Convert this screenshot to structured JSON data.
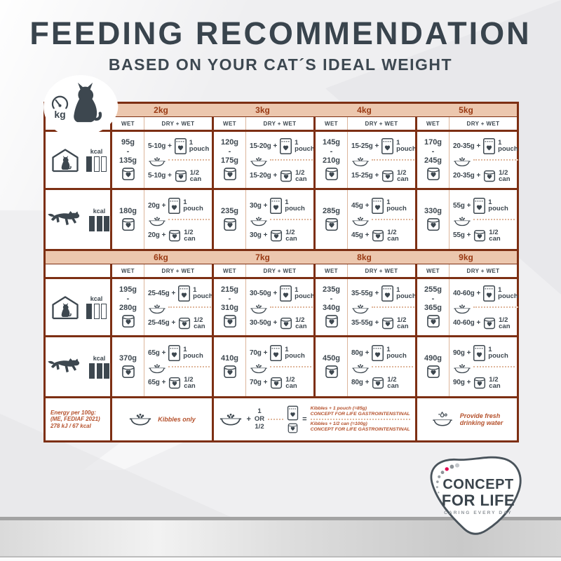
{
  "title": "FEEDING RECOMMENDATION",
  "subtitle": "BASED ON YOUR CAT´S IDEAL WEIGHT",
  "badge": {
    "unit": "kg"
  },
  "labels": {
    "wet": "WET",
    "dry_wet": "DRY + WET",
    "kcal": "kcal",
    "plus": "+",
    "pouch_qty": "1",
    "pouch_unit": "pouch",
    "can_qty": "1/2",
    "can_unit": "can"
  },
  "table": {
    "halves": [
      {
        "weights": [
          "2kg",
          "3kg",
          "4kg",
          "5kg"
        ],
        "rows": [
          {
            "type": "indoor-cat",
            "kcal_level": 1,
            "cells": [
              {
                "wet": [
                  "95g",
                  "-",
                  "135g"
                ],
                "dry": "5-10g"
              },
              {
                "wet": [
                  "120g",
                  "-",
                  "175g"
                ],
                "dry": "15-20g"
              },
              {
                "wet": [
                  "145g",
                  "-",
                  "210g"
                ],
                "dry": "15-25g"
              },
              {
                "wet": [
                  "170g",
                  "-",
                  "245g"
                ],
                "dry": "20-35g"
              }
            ]
          },
          {
            "type": "active-cat",
            "kcal_level": 3,
            "cells": [
              {
                "wet": [
                  "180g"
                ],
                "dry": "20g"
              },
              {
                "wet": [
                  "235g"
                ],
                "dry": "30g"
              },
              {
                "wet": [
                  "285g"
                ],
                "dry": "45g"
              },
              {
                "wet": [
                  "330g"
                ],
                "dry": "55g"
              }
            ]
          }
        ]
      },
      {
        "weights": [
          "6kg",
          "7kg",
          "8kg",
          "9kg"
        ],
        "rows": [
          {
            "type": "indoor-cat",
            "kcal_level": 1,
            "cells": [
              {
                "wet": [
                  "195g",
                  "-",
                  "280g"
                ],
                "dry": "25-45g"
              },
              {
                "wet": [
                  "215g",
                  "-",
                  "310g"
                ],
                "dry": "30-50g"
              },
              {
                "wet": [
                  "235g",
                  "-",
                  "340g"
                ],
                "dry": "35-55g"
              },
              {
                "wet": [
                  "255g",
                  "-",
                  "365g"
                ],
                "dry": "40-60g"
              }
            ]
          },
          {
            "type": "active-cat",
            "kcal_level": 3,
            "cells": [
              {
                "wet": [
                  "370g"
                ],
                "dry": "65g"
              },
              {
                "wet": [
                  "410g"
                ],
                "dry": "70g"
              },
              {
                "wet": [
                  "450g"
                ],
                "dry": "80g"
              },
              {
                "wet": [
                  "490g"
                ],
                "dry": "90g"
              }
            ]
          }
        ]
      }
    ]
  },
  "footer": {
    "energy_lines": [
      "Energy per 100g:",
      "(ME, FEDIAF 2021)",
      "278 kJ / 67 kcal"
    ],
    "kibbles_only": "Kibbles only",
    "legend": {
      "plus": "+",
      "one": "1",
      "or": "OR",
      "half": "1/2",
      "equals": "=",
      "pouch_line1": "Kibbles + 1 pouch (=85g)",
      "pouch_line2": "CONCEPT FOR LIFE GASTROINTENSTINAL",
      "can_line1": "Kibbles + 1/2 can (=100g)",
      "can_line2": "CONCEPT FOR LIFE GASTROINTENSTINAL"
    },
    "water": [
      "Provide fresh",
      "drinking water"
    ]
  },
  "logo": {
    "line1": "CONCEPT",
    "line2": "FOR LIFE",
    "tagline": "CARING EVERY DAY"
  },
  "colors": {
    "border_rust": "#7d2f13",
    "band_tan": "#ecc7ae",
    "band_text": "#9a3a14",
    "charcoal": "#3d474f",
    "footer_text": "#b5512c"
  }
}
